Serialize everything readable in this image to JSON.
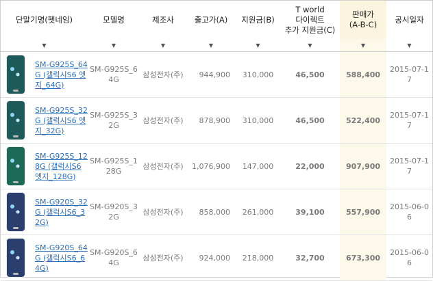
{
  "headers": {
    "name": "단말기명(펫네임)",
    "model": "모델명",
    "maker": "제조사",
    "price": "출고가(A)",
    "support": "지원금(B)",
    "extra_l1": "T world",
    "extra_l2": "다이렉트",
    "extra_l3": "추가 지원금(C)",
    "sale_l1": "판매가",
    "sale_l2": "(A-B-C)",
    "date": "공시일자"
  },
  "filter_arrow": "▼",
  "rows": [
    {
      "name": "SM-G925S_64G (갤럭시S6 엣지_64G)",
      "model": "SM-G925S_64G",
      "maker": "삼성전자(주)",
      "price": "944,900",
      "support": "310,000",
      "extra": "46,500",
      "sale": "588,400",
      "date": "2015-07-17",
      "phone_color": "#1f5a5a"
    },
    {
      "name": "SM-G925S_32G (갤럭시S6 엣지_32G)",
      "model": "SM-G925S_32G",
      "maker": "삼성전자(주)",
      "price": "878,900",
      "support": "310,000",
      "extra": "46,500",
      "sale": "522,400",
      "date": "2015-07-17",
      "phone_color": "#1f5a5a"
    },
    {
      "name": "SM-G925S_128G (갤럭시S6엣지_128G)",
      "model": "SM-G925S_128G",
      "maker": "삼성전자(주)",
      "price": "1,076,900",
      "support": "147,000",
      "extra": "22,000",
      "sale": "907,900",
      "date": "2015-07-17",
      "phone_color": "#1c6a55"
    },
    {
      "name": "SM-G920S_32G (갤럭시S6_32G)",
      "model": "SM-G920S_32G",
      "maker": "삼성전자(주)",
      "price": "858,000",
      "support": "261,000",
      "extra": "39,100",
      "sale": "557,900",
      "date": "2015-06-06",
      "phone_color": "#2c3e6e"
    },
    {
      "name": "SM-G920S_64G (갤럭시S6_64G)",
      "model": "SM-G920S_64G",
      "maker": "삼성전자(주)",
      "price": "924,000",
      "support": "218,000",
      "extra": "32,700",
      "sale": "673,300",
      "date": "2015-06-06",
      "phone_color": "#2c3e6e"
    }
  ]
}
